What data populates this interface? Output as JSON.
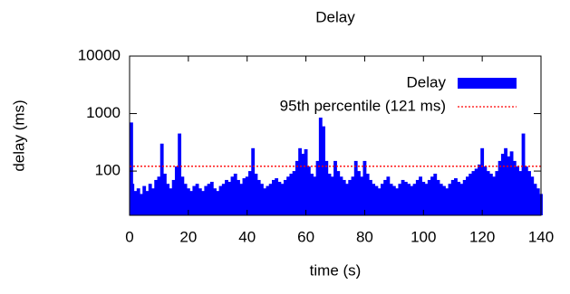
{
  "chart_data": {
    "type": "impulse",
    "title": "Delay",
    "x_label": "time (s)",
    "y_label": "delay (ms)",
    "log_y": true,
    "xlim": [
      0,
      140
    ],
    "xticks": [
      0,
      20,
      40,
      60,
      80,
      100,
      120,
      140
    ],
    "ylim": [
      17,
      10000
    ],
    "yticks": [
      100,
      1000,
      10000
    ],
    "x": [
      0,
      1,
      2,
      3,
      4,
      5,
      6,
      7,
      8,
      9,
      10,
      11,
      12,
      13,
      14,
      15,
      16,
      17,
      18,
      19,
      20,
      21,
      22,
      23,
      24,
      25,
      26,
      27,
      28,
      29,
      30,
      31,
      32,
      33,
      34,
      35,
      36,
      37,
      38,
      39,
      40,
      41,
      42,
      43,
      44,
      45,
      46,
      47,
      48,
      49,
      50,
      51,
      52,
      53,
      54,
      55,
      56,
      57,
      58,
      59,
      60,
      61,
      62,
      63,
      64,
      65,
      66,
      67,
      68,
      69,
      70,
      71,
      72,
      73,
      74,
      75,
      76,
      77,
      78,
      79,
      80,
      81,
      82,
      83,
      84,
      85,
      86,
      87,
      88,
      89,
      90,
      91,
      92,
      93,
      94,
      95,
      96,
      97,
      98,
      99,
      100,
      101,
      102,
      103,
      104,
      105,
      106,
      107,
      108,
      109,
      110,
      111,
      112,
      113,
      114,
      115,
      116,
      117,
      118,
      119,
      120,
      121,
      122,
      123,
      124,
      125,
      126,
      127,
      128,
      129,
      130,
      131,
      132,
      133,
      134,
      135,
      136,
      137,
      138,
      139,
      140
    ],
    "series": [
      {
        "name": "Delay",
        "color": "#0000ff",
        "values": [
          700,
          60,
          45,
          50,
          40,
          55,
          45,
          60,
          50,
          70,
          80,
          300,
          90,
          60,
          50,
          70,
          120,
          450,
          80,
          60,
          50,
          45,
          55,
          60,
          50,
          45,
          55,
          60,
          65,
          50,
          45,
          55,
          60,
          70,
          65,
          80,
          90,
          70,
          60,
          75,
          80,
          100,
          250,
          90,
          70,
          60,
          50,
          55,
          60,
          70,
          75,
          65,
          60,
          70,
          80,
          90,
          100,
          150,
          250,
          200,
          240,
          120,
          90,
          80,
          150,
          1200,
          600,
          150,
          90,
          80,
          150,
          100,
          80,
          70,
          60,
          70,
          80,
          150,
          100,
          80,
          150,
          90,
          70,
          60,
          55,
          50,
          60,
          70,
          80,
          60,
          55,
          50,
          60,
          70,
          65,
          60,
          55,
          60,
          70,
          80,
          65,
          60,
          70,
          80,
          90,
          70,
          60,
          55,
          50,
          60,
          70,
          75,
          65,
          60,
          70,
          80,
          90,
          100,
          110,
          130,
          250,
          120,
          100,
          90,
          80,
          100,
          150,
          200,
          250,
          180,
          220,
          150,
          120,
          100,
          450,
          120,
          100,
          80,
          60,
          50,
          40
        ]
      }
    ],
    "reference_line": {
      "name": "95th percentile (121 ms)",
      "value": 121,
      "color": "#ff0000"
    }
  }
}
